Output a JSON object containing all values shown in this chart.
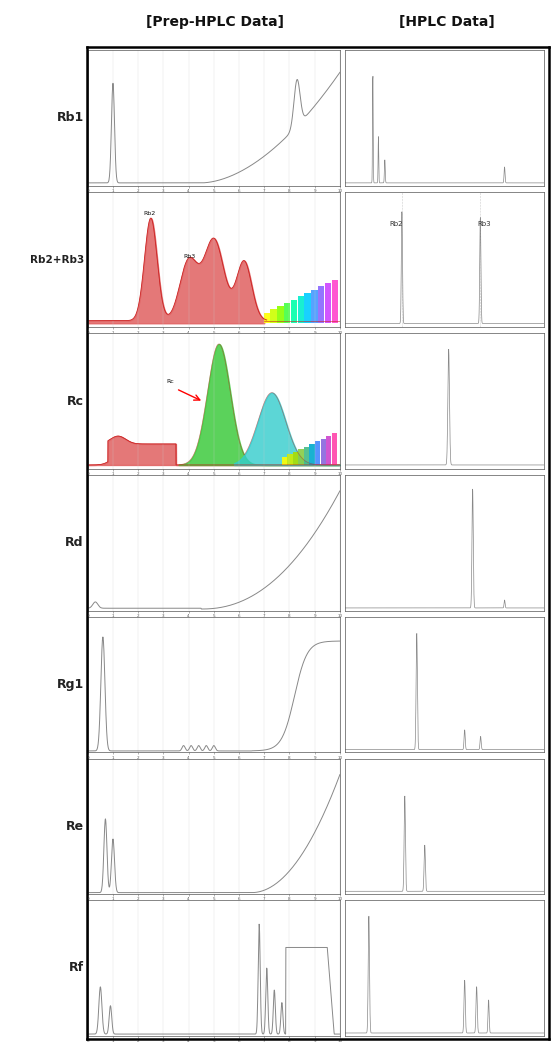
{
  "title_left": "[Prep-HPLC Data]",
  "title_right": "[HPLC Data]",
  "row_labels": [
    "Rb1",
    "Rb2+Rb3",
    "Rc",
    "Rd",
    "Rg1",
    "Re",
    "Rf"
  ],
  "bg": "#ffffff",
  "plot_bg": "#ffffff",
  "line_color": "#888888",
  "thin_line": "#aaaaaa",
  "red_fill": "#e06060",
  "green_fill": "#44bb44",
  "cyan_fill": "#44cccc",
  "label_fontsize": 9,
  "tick_fontsize": 3
}
